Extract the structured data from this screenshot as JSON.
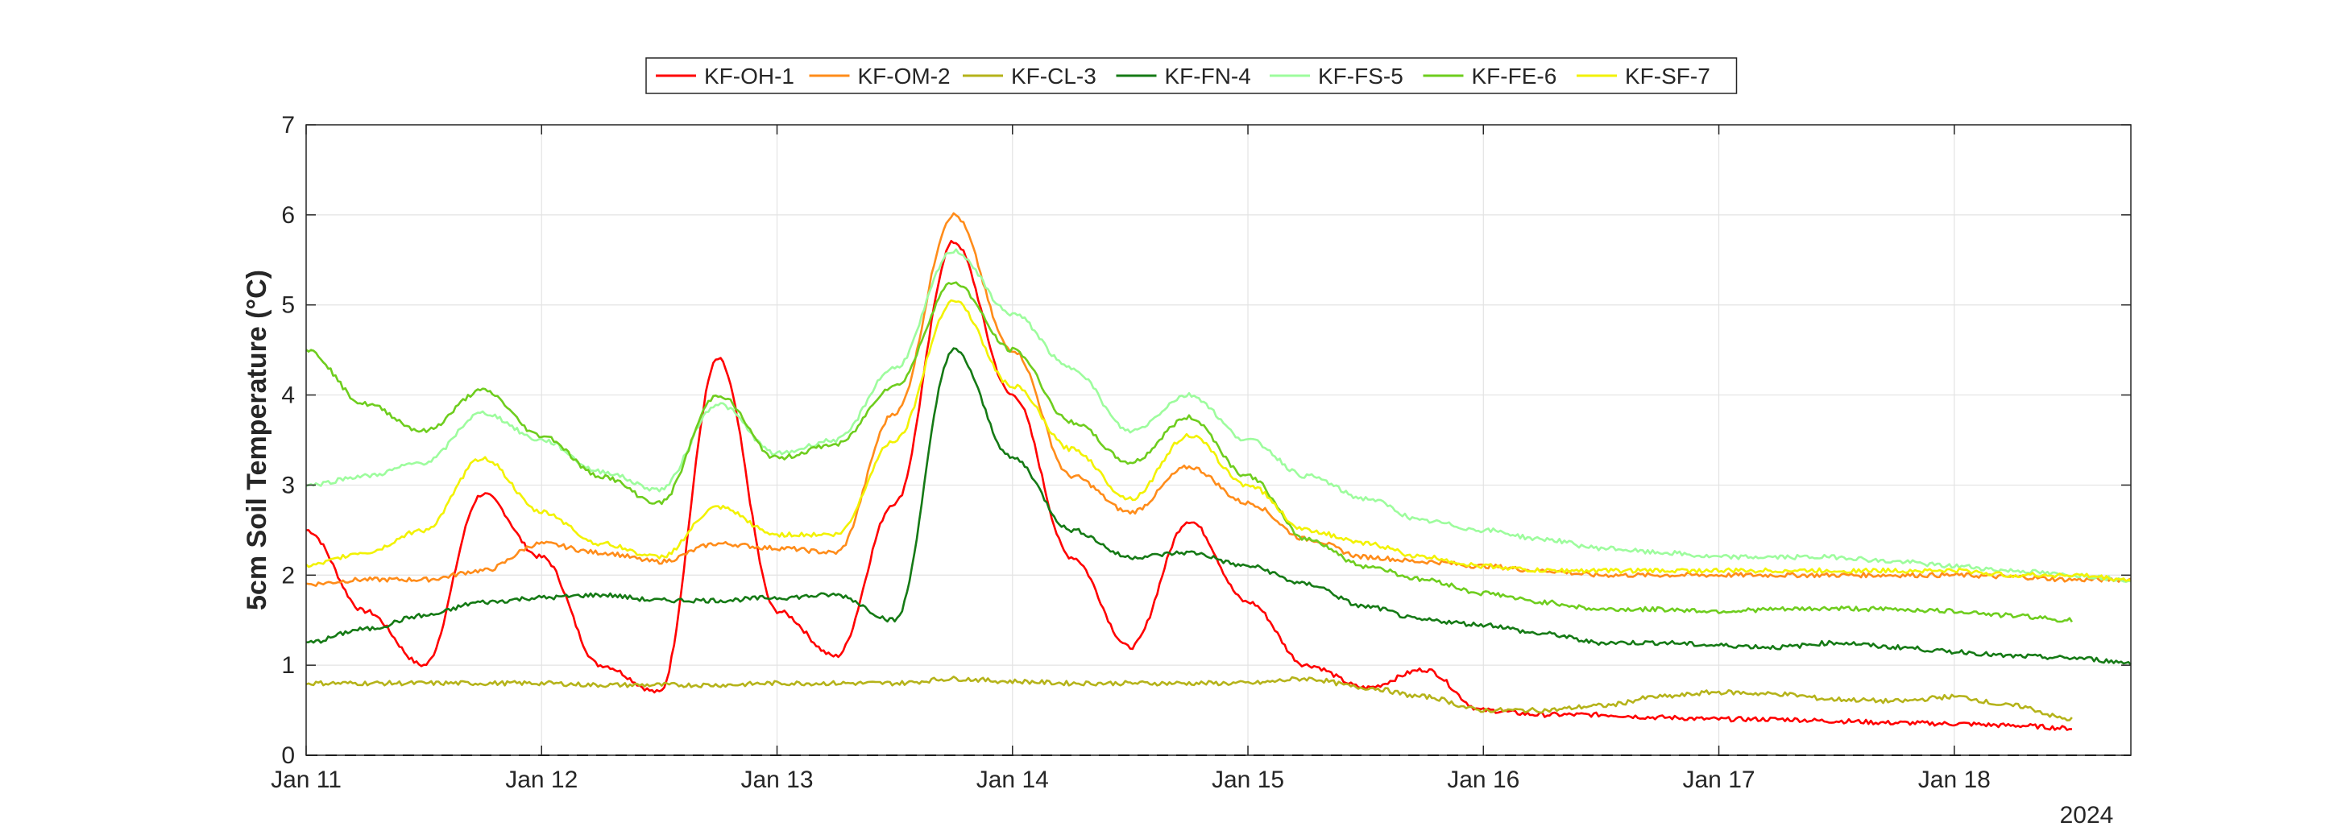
{
  "chart_data": {
    "type": "line",
    "title": "",
    "xlabel": "",
    "ylabel": "5cm Soil Temperature (°C)",
    "year_label": "2024",
    "x_ticks": [
      "Jan 11",
      "Jan 12",
      "Jan 13",
      "Jan 14",
      "Jan 15",
      "Jan 16",
      "Jan 17",
      "Jan 18"
    ],
    "xlim": [
      "2024-01-11 00:00",
      "2024-01-18 18:00"
    ],
    "ylim": [
      0,
      7
    ],
    "y_ticks": [
      0,
      1,
      2,
      3,
      4,
      5,
      6,
      7
    ],
    "grid": true,
    "legend_position": "top-center",
    "reference_line": {
      "y": 0,
      "style": "dashed",
      "color": "#000000"
    },
    "x": [
      "2024-01-11 00:00",
      "2024-01-11 06:00",
      "2024-01-11 12:00",
      "2024-01-11 18:00",
      "2024-01-12 00:00",
      "2024-01-12 06:00",
      "2024-01-12 12:00",
      "2024-01-12 18:00",
      "2024-01-13 00:00",
      "2024-01-13 06:00",
      "2024-01-13 12:00",
      "2024-01-13 18:00",
      "2024-01-14 00:00",
      "2024-01-14 06:00",
      "2024-01-14 12:00",
      "2024-01-14 18:00",
      "2024-01-15 00:00",
      "2024-01-15 06:00",
      "2024-01-15 12:00",
      "2024-01-15 18:00",
      "2024-01-16 00:00",
      "2024-01-16 06:00",
      "2024-01-16 12:00",
      "2024-01-16 18:00",
      "2024-01-17 00:00",
      "2024-01-17 06:00",
      "2024-01-17 12:00",
      "2024-01-17 18:00",
      "2024-01-18 00:00",
      "2024-01-18 06:00",
      "2024-01-18 12:00",
      "2024-01-18 18:00"
    ],
    "series": [
      {
        "name": "KF-OH-1",
        "color": "#ff0000",
        "values": [
          2.5,
          1.6,
          1.0,
          2.9,
          2.2,
          1.0,
          0.7,
          4.4,
          1.6,
          1.1,
          2.8,
          5.7,
          4.0,
          2.2,
          1.2,
          2.6,
          1.7,
          1.0,
          0.75,
          0.95,
          0.5,
          0.45,
          0.45,
          0.42,
          0.4,
          0.4,
          0.38,
          0.36,
          0.35,
          0.33,
          0.3,
          null
        ]
      },
      {
        "name": "KF-OM-2",
        "color": "#ff8c1a",
        "values": [
          1.9,
          1.95,
          1.95,
          2.05,
          2.35,
          2.25,
          2.15,
          2.35,
          2.3,
          2.25,
          3.8,
          6.0,
          4.5,
          3.1,
          2.7,
          3.2,
          2.8,
          2.4,
          2.2,
          2.15,
          2.1,
          2.05,
          2.0,
          2.0,
          2.0,
          2.0,
          2.0,
          2.0,
          2.0,
          1.98,
          1.95,
          1.95
        ]
      },
      {
        "name": "KF-CL-3",
        "color": "#b5b31a",
        "values": [
          0.8,
          0.8,
          0.8,
          0.8,
          0.8,
          0.78,
          0.78,
          0.78,
          0.8,
          0.8,
          0.8,
          0.85,
          0.82,
          0.8,
          0.8,
          0.8,
          0.8,
          0.85,
          0.75,
          0.65,
          0.5,
          0.5,
          0.55,
          0.65,
          0.7,
          0.68,
          0.62,
          0.6,
          0.65,
          0.55,
          0.4,
          null
        ]
      },
      {
        "name": "KF-FN-4",
        "color": "#157a15",
        "values": [
          1.25,
          1.4,
          1.55,
          1.7,
          1.75,
          1.78,
          1.72,
          1.72,
          1.75,
          1.78,
          1.5,
          4.5,
          3.3,
          2.5,
          2.2,
          2.25,
          2.1,
          1.9,
          1.65,
          1.5,
          1.45,
          1.35,
          1.25,
          1.25,
          1.22,
          1.2,
          1.25,
          1.2,
          1.15,
          1.1,
          1.08,
          1.03
        ]
      },
      {
        "name": "KF-FS-5",
        "color": "#9dfc9d",
        "values": [
          3.0,
          3.1,
          3.25,
          3.8,
          3.5,
          3.15,
          2.95,
          3.9,
          3.35,
          3.5,
          4.3,
          5.6,
          4.9,
          4.3,
          3.6,
          4.0,
          3.5,
          3.1,
          2.85,
          2.6,
          2.5,
          2.4,
          2.3,
          2.25,
          2.2,
          2.2,
          2.2,
          2.15,
          2.1,
          2.05,
          2.0,
          1.95
        ]
      },
      {
        "name": "KF-FE-6",
        "color": "#6ecd1e",
        "values": [
          4.5,
          3.9,
          3.6,
          4.05,
          3.55,
          3.1,
          2.8,
          4.0,
          3.3,
          3.45,
          4.1,
          5.25,
          4.5,
          3.7,
          3.25,
          3.75,
          3.1,
          2.4,
          2.1,
          1.95,
          1.8,
          1.7,
          1.62,
          1.62,
          1.6,
          1.62,
          1.63,
          1.62,
          1.6,
          1.55,
          1.5,
          null
        ]
      },
      {
        "name": "KF-SF-7",
        "color": "#f2f202",
        "values": [
          2.1,
          2.25,
          2.5,
          3.3,
          2.7,
          2.35,
          2.2,
          2.75,
          2.45,
          2.45,
          3.5,
          5.05,
          4.1,
          3.4,
          2.85,
          3.55,
          3.0,
          2.5,
          2.35,
          2.2,
          2.1,
          2.05,
          2.05,
          2.05,
          2.05,
          2.05,
          2.05,
          2.05,
          2.05,
          2.0,
          2.0,
          1.95
        ]
      }
    ]
  }
}
